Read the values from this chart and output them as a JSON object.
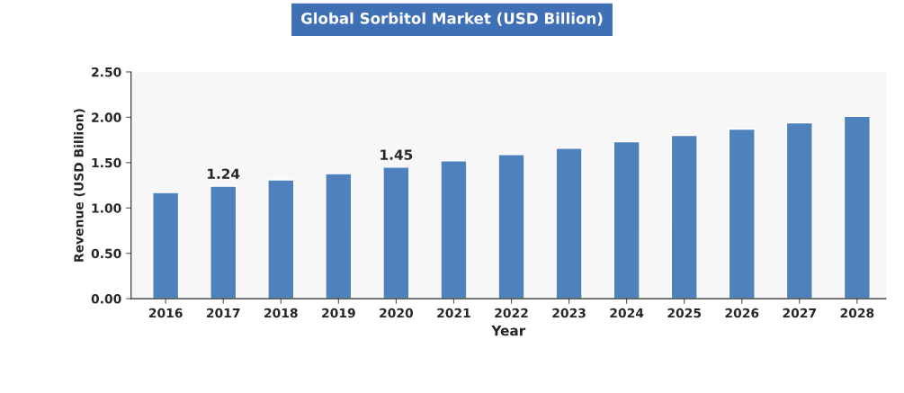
{
  "chart_data": {
    "type": "bar",
    "title": "Global Sorbitol Market (USD Billion)",
    "xlabel": "Year",
    "ylabel": "Revenue (USD Billion)",
    "categories": [
      "2016",
      "2017",
      "2018",
      "2019",
      "2020",
      "2021",
      "2022",
      "2023",
      "2024",
      "2025",
      "2026",
      "2027",
      "2028"
    ],
    "values": [
      1.17,
      1.24,
      1.31,
      1.38,
      1.45,
      1.52,
      1.59,
      1.66,
      1.73,
      1.8,
      1.87,
      1.94,
      2.01
    ],
    "value_labels": [
      null,
      "1.24",
      null,
      null,
      "1.45",
      null,
      null,
      null,
      null,
      null,
      null,
      null,
      null
    ],
    "color": "#4f81bd",
    "ylim": [
      0,
      2.5
    ],
    "yticks": [
      {
        "value": 0,
        "label": "0.00"
      },
      {
        "value": 0.5,
        "label": "0.50"
      },
      {
        "value": 1,
        "label": "1.00"
      },
      {
        "value": 1.5,
        "label": "1.50"
      },
      {
        "value": 2,
        "label": "2.00"
      },
      {
        "value": 2.5,
        "label": "2.50"
      }
    ]
  }
}
